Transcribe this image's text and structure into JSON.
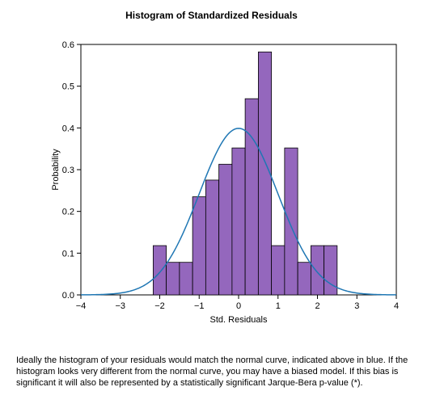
{
  "chart": {
    "type": "histogram",
    "title": "Histogram of Standardized Residuals",
    "title_fontsize": 12,
    "xlabel": "Std. Residuals",
    "ylabel": "Probability",
    "label_fontsize": 11,
    "xlim": [
      -4,
      4
    ],
    "ylim": [
      0,
      0.6
    ],
    "xticks": [
      -4,
      -3,
      -2,
      -1,
      0,
      1,
      2,
      3,
      4
    ],
    "yticks": [
      0.0,
      0.1,
      0.2,
      0.3,
      0.4,
      0.5,
      0.6
    ],
    "bin_width": 0.333,
    "bar_color": "#9467bd",
    "bar_edge_color": "#000000",
    "curve_color": "#1f77b4",
    "axis_color": "#000000",
    "background_color": "#ffffff",
    "bars": [
      {
        "center": -2.0,
        "height": 0.118
      },
      {
        "center": -1.667,
        "height": 0.078
      },
      {
        "center": -1.333,
        "height": 0.078
      },
      {
        "center": -1.0,
        "height": 0.235
      },
      {
        "center": -0.667,
        "height": 0.275
      },
      {
        "center": -0.333,
        "height": 0.313
      },
      {
        "center": 0.0,
        "height": 0.352
      },
      {
        "center": 0.333,
        "height": 0.47
      },
      {
        "center": 0.667,
        "height": 0.582
      },
      {
        "center": 1.0,
        "height": 0.118
      },
      {
        "center": 1.333,
        "height": 0.352
      },
      {
        "center": 1.667,
        "height": 0.078
      },
      {
        "center": 2.0,
        "height": 0.118
      },
      {
        "center": 2.333,
        "height": 0.118
      }
    ],
    "normal_curve": {
      "mean": 0,
      "std": 1,
      "amplitude": 0.399
    }
  },
  "caption": {
    "text": "Ideally the histogram of your residuals would match the normal curve, indicated above in blue.  If the histogram looks very different from the normal curve, you may have a biased model.  If this bias is significant it will also be represented by a statistically significant Jarque-Bera p-value (*).",
    "fontsize": 11,
    "color": "#000000"
  }
}
